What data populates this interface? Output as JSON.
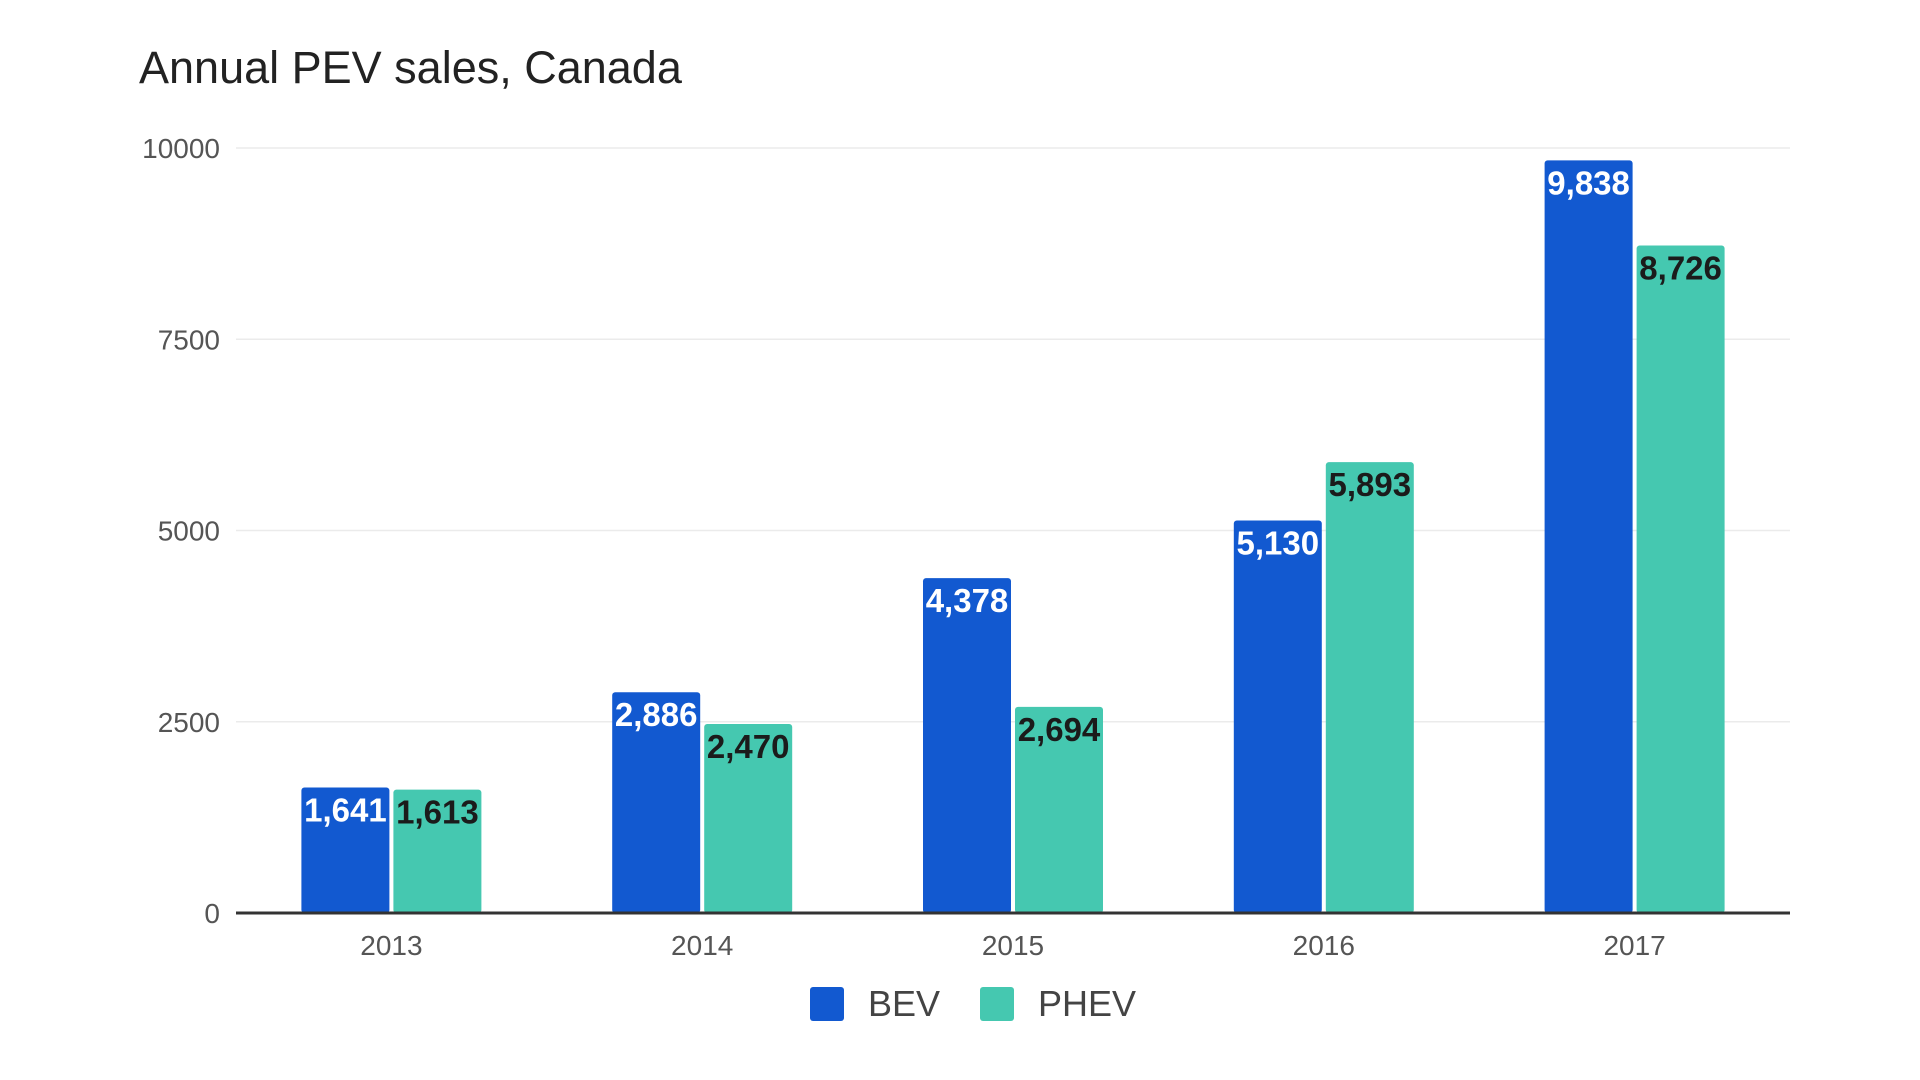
{
  "chart_data": {
    "type": "bar",
    "title": "Annual PEV sales, Canada",
    "categories": [
      "2013",
      "2014",
      "2015",
      "2016",
      "2017"
    ],
    "series": [
      {
        "name": "BEV",
        "color": "#1259d0",
        "label_color": "#ffffff",
        "values": [
          1641,
          2886,
          4378,
          5130,
          9838
        ],
        "value_labels": [
          "1,641",
          "2,886",
          "4,378",
          "5,130",
          "9,838"
        ]
      },
      {
        "name": "PHEV",
        "color": "#45c8b0",
        "label_color": "#1b1b1b",
        "values": [
          1613,
          2470,
          2694,
          5893,
          8726
        ],
        "value_labels": [
          "1,613",
          "2,470",
          "2,694",
          "5,893",
          "8,726"
        ]
      }
    ],
    "ylim": [
      0,
      10000
    ],
    "yticks": [
      0,
      2500,
      5000,
      7500,
      10000
    ],
    "xlabel": "",
    "ylabel": "",
    "grid": true,
    "legend": "bottom-center"
  }
}
